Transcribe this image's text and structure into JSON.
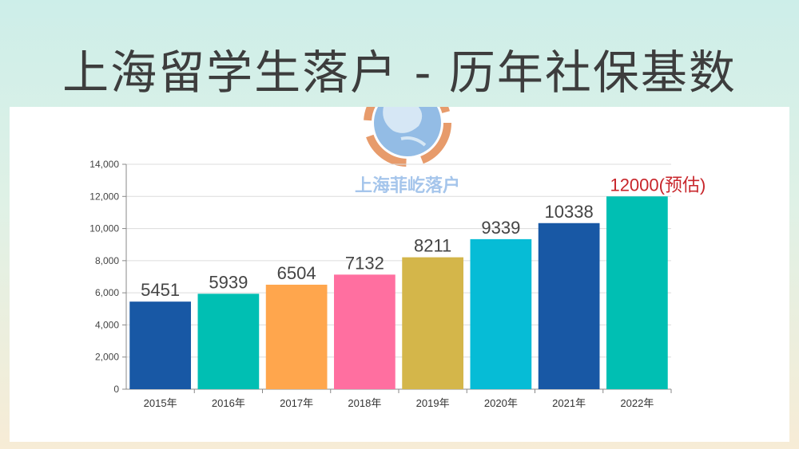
{
  "header": {
    "title": "上海留学生落户 - 历年社保基数"
  },
  "watermark": {
    "text": "上海菲屹落户",
    "icon": "globe-icon"
  },
  "colors": {
    "grid": "#dcdcdc",
    "axis": "#888888",
    "estimate_label": "#c8262b"
  },
  "chart_data": {
    "type": "bar",
    "title": "",
    "xlabel": "",
    "ylabel": "",
    "ylim": [
      0,
      14000
    ],
    "yticks": [
      {
        "value": 0,
        "label": "0"
      },
      {
        "value": 2000,
        "label": "2,000"
      },
      {
        "value": 4000,
        "label": "4,000"
      },
      {
        "value": 6000,
        "label": "6,000"
      },
      {
        "value": 8000,
        "label": "8,000"
      },
      {
        "value": 10000,
        "label": "10,000"
      },
      {
        "value": 12000,
        "label": "12,000"
      },
      {
        "value": 14000,
        "label": "14,000"
      }
    ],
    "grid": true,
    "categories": [
      "2015年",
      "2016年",
      "2017年",
      "2018年",
      "2019年",
      "2020年",
      "2021年",
      "2022年"
    ],
    "values": [
      5451,
      5939,
      6504,
      7132,
      8211,
      9339,
      10338,
      12000
    ],
    "data_labels": [
      "5451",
      "5939",
      "6504",
      "7132",
      "8211",
      "9339",
      "10338",
      "12000(预估)"
    ],
    "bar_colors": [
      "#1858a5",
      "#00bfb3",
      "#ffa64d",
      "#ff6fa0",
      "#d4b64a",
      "#06bcd6",
      "#1858a5",
      "#00bfb3"
    ]
  }
}
